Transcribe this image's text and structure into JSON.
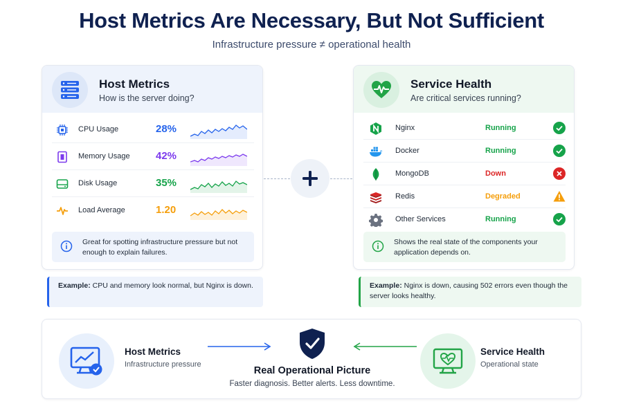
{
  "title": "Host Metrics Are Necessary, But Not Sufficient",
  "subtitle": "Infrastructure pressure ≠ operational health",
  "host_panel": {
    "title": "Host Metrics",
    "subtitle": "How is the server doing?",
    "metrics": [
      {
        "label": "CPU Usage",
        "value": "28%",
        "color": "#2563eb"
      },
      {
        "label": "Memory Usage",
        "value": "42%",
        "color": "#7c3aed"
      },
      {
        "label": "Disk Usage",
        "value": "35%",
        "color": "#16a34a"
      },
      {
        "label": "Load Average",
        "value": "1.20",
        "color": "#f59e0b"
      }
    ],
    "note": "Great for spotting infrastructure pressure but not enough to explain failures.",
    "example_label": "Example:",
    "example_text": "CPU and memory look normal, but Nginx is down."
  },
  "service_panel": {
    "title": "Service Health",
    "subtitle": "Are critical services running?",
    "services": [
      {
        "name": "Nginx",
        "status": "Running",
        "icon": "nginx-icon",
        "state": "ok"
      },
      {
        "name": "Docker",
        "status": "Running",
        "icon": "docker-icon",
        "state": "ok"
      },
      {
        "name": "MongoDB",
        "status": "Down",
        "icon": "mongodb-icon",
        "state": "down"
      },
      {
        "name": "Redis",
        "status": "Degraded",
        "icon": "redis-icon",
        "state": "warn"
      },
      {
        "name": "Other Services",
        "status": "Running",
        "icon": "gear-icon",
        "state": "ok"
      }
    ],
    "note": "Shows the real state of the components your application depends on.",
    "example_label": "Example:",
    "example_text": "Nginx is down, causing 502 errors even though the server looks healthy."
  },
  "bottom": {
    "left_title": "Host Metrics",
    "left_sub": "Infrastructure pressure",
    "center_title": "Real Operational Picture",
    "center_sub": "Faster diagnosis. Better alerts. Less downtime.",
    "right_title": "Service Health",
    "right_sub": "Operational state"
  },
  "colors": {
    "ok": "#16a34a",
    "down": "#dc2626",
    "warn": "#f59e0b",
    "primary": "#2563eb",
    "navy": "#0f2150"
  }
}
